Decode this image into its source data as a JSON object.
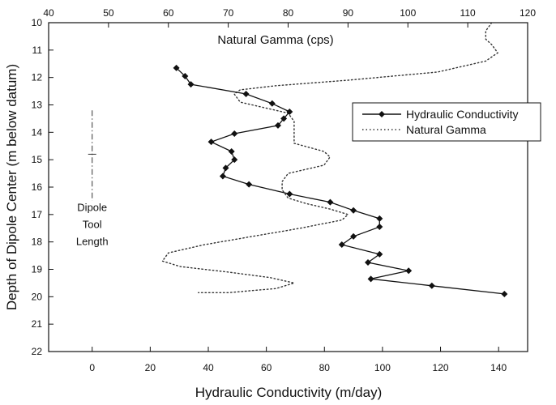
{
  "chart_data": {
    "type": "line",
    "title": "Natural Gamma (cps)",
    "xlabel": "Hydraulic Conductivity (m/day)",
    "x2label": "",
    "ylabel": "Depth of Dipole Center (m below datum)",
    "xlim": [
      -15,
      150
    ],
    "x2lim": [
      40,
      120
    ],
    "ylim": [
      10,
      22
    ],
    "y_inverted": true,
    "x_ticks": [
      0,
      20,
      40,
      60,
      80,
      100,
      120,
      140
    ],
    "x2_ticks": [
      40,
      50,
      60,
      70,
      80,
      90,
      100,
      110,
      120
    ],
    "y_ticks": [
      10,
      11,
      12,
      13,
      14,
      15,
      16,
      17,
      18,
      19,
      20,
      21,
      22
    ],
    "grid": false,
    "legend_position": "right",
    "series": [
      {
        "name": "Hydraulic Conductivity",
        "axis": "bottom",
        "style": "solid-diamond",
        "color": "#111111",
        "points": [
          {
            "x": 29,
            "y": 11.65
          },
          {
            "x": 32,
            "y": 11.95
          },
          {
            "x": 34,
            "y": 12.25
          },
          {
            "x": 53,
            "y": 12.6
          },
          {
            "x": 62,
            "y": 12.95
          },
          {
            "x": 68,
            "y": 13.25
          },
          {
            "x": 66,
            "y": 13.5
          },
          {
            "x": 64,
            "y": 13.75
          },
          {
            "x": 49,
            "y": 14.05
          },
          {
            "x": 41,
            "y": 14.35
          },
          {
            "x": 48,
            "y": 14.7
          },
          {
            "x": 49,
            "y": 15.0
          },
          {
            "x": 46,
            "y": 15.3
          },
          {
            "x": 45,
            "y": 15.6
          },
          {
            "x": 54,
            "y": 15.9
          },
          {
            "x": 68,
            "y": 16.25
          },
          {
            "x": 82,
            "y": 16.55
          },
          {
            "x": 90,
            "y": 16.85
          },
          {
            "x": 99,
            "y": 17.15
          },
          {
            "x": 99,
            "y": 17.45
          },
          {
            "x": 90,
            "y": 17.8
          },
          {
            "x": 86,
            "y": 18.1
          },
          {
            "x": 99,
            "y": 18.45
          },
          {
            "x": 95,
            "y": 18.75
          },
          {
            "x": 109,
            "y": 19.05
          },
          {
            "x": 96,
            "y": 19.35
          },
          {
            "x": 117,
            "y": 19.6
          },
          {
            "x": 142,
            "y": 19.9
          }
        ]
      },
      {
        "name": "Natural Gamma",
        "axis": "top",
        "style": "dotted",
        "color": "#333333",
        "points": [
          {
            "x": 114,
            "y": 10.0
          },
          {
            "x": 113,
            "y": 10.3
          },
          {
            "x": 113,
            "y": 10.6
          },
          {
            "x": 114,
            "y": 10.8
          },
          {
            "x": 115,
            "y": 11.1
          },
          {
            "x": 113,
            "y": 11.4
          },
          {
            "x": 105,
            "y": 11.8
          },
          {
            "x": 90,
            "y": 12.1
          },
          {
            "x": 78,
            "y": 12.3
          },
          {
            "x": 72,
            "y": 12.45
          },
          {
            "x": 71,
            "y": 12.6
          },
          {
            "x": 72,
            "y": 12.9
          },
          {
            "x": 74,
            "y": 13.0
          },
          {
            "x": 80,
            "y": 13.3
          },
          {
            "x": 81,
            "y": 13.6
          },
          {
            "x": 81,
            "y": 14.0
          },
          {
            "x": 81,
            "y": 14.4
          },
          {
            "x": 86,
            "y": 14.7
          },
          {
            "x": 87,
            "y": 14.9
          },
          {
            "x": 86,
            "y": 15.2
          },
          {
            "x": 80,
            "y": 15.5
          },
          {
            "x": 79,
            "y": 15.8
          },
          {
            "x": 79,
            "y": 16.1
          },
          {
            "x": 80,
            "y": 16.4
          },
          {
            "x": 83,
            "y": 16.6
          },
          {
            "x": 87,
            "y": 16.8
          },
          {
            "x": 90,
            "y": 17.0
          },
          {
            "x": 89,
            "y": 17.2
          },
          {
            "x": 82,
            "y": 17.5
          },
          {
            "x": 74,
            "y": 17.8
          },
          {
            "x": 66,
            "y": 18.1
          },
          {
            "x": 60,
            "y": 18.4
          },
          {
            "x": 59,
            "y": 18.7
          },
          {
            "x": 62,
            "y": 18.9
          },
          {
            "x": 70,
            "y": 19.1
          },
          {
            "x": 77,
            "y": 19.3
          },
          {
            "x": 81,
            "y": 19.5
          },
          {
            "x": 78,
            "y": 19.7
          },
          {
            "x": 70,
            "y": 19.85
          },
          {
            "x": 65,
            "y": 19.85
          }
        ]
      }
    ],
    "annotation": {
      "lines": [
        "Dipole",
        "Tool",
        "Length"
      ],
      "x": 0,
      "y_from": 13.2,
      "y_to": 16.5,
      "tick_y": 14.8
    }
  }
}
